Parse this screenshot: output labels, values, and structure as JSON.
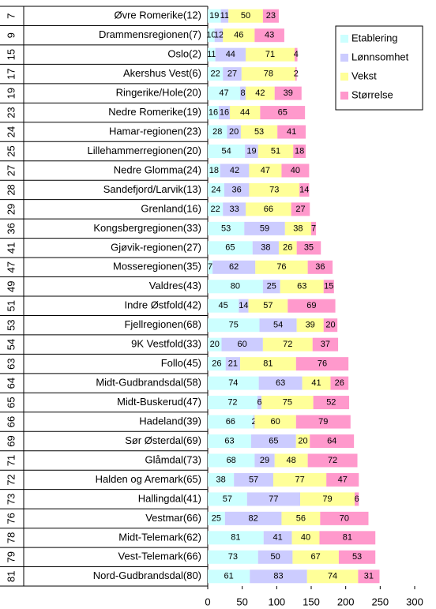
{
  "chart_data": {
    "type": "stacked_bar_horizontal",
    "category_groups": [
      "7",
      "9",
      "15",
      "17",
      "19",
      "23",
      "24",
      "25",
      "27",
      "28",
      "29",
      "36",
      "41",
      "47",
      "49",
      "51",
      "53",
      "54",
      "63",
      "64",
      "65",
      "66",
      "69",
      "71",
      "72",
      "73",
      "76",
      "78",
      "79",
      "81"
    ],
    "categories": [
      "Øvre Romerike(12)",
      "Drammensregionen(7)",
      "Oslo(2)",
      "Akershus Vest(6)",
      "Ringerike/Hole(20)",
      "Nedre Romerike(19)",
      "Hamar-regionen(23)",
      "Lillehammerregionen(20)",
      "Nedre Glomma(24)",
      "Sandefjord/Larvik(13)",
      "Grenland(16)",
      "Kongsbergregionen(33)",
      "Gjøvik-regionen(27)",
      "Mosseregionen(35)",
      "Valdres(43)",
      "Indre Østfold(42)",
      "Fjellregionen(68)",
      "9K Vestfold(33)",
      "Follo(45)",
      "Midt-Gudbrandsdal(58)",
      "Midt-Buskerud(47)",
      "Hadeland(39)",
      "Sør Østerdal(69)",
      "Glåmdal(73)",
      "Halden og Aremark(65)",
      "Hallingdal(41)",
      "Vestmar(66)",
      "Midt-Telemark(62)",
      "Vest-Telemark(66)",
      "Nord-Gudbrandsdal(80)"
    ],
    "series": [
      {
        "name": "Etablering",
        "color": "#ccffff",
        "values": [
          19,
          10,
          11,
          22,
          47,
          16,
          28,
          54,
          18,
          24,
          22,
          53,
          65,
          7,
          80,
          45,
          75,
          20,
          26,
          74,
          72,
          66,
          63,
          68,
          38,
          57,
          25,
          81,
          73,
          61
        ]
      },
      {
        "name": "Lønnsomhet",
        "color": "#ccccff",
        "values": [
          11,
          12,
          44,
          27,
          8,
          16,
          20,
          19,
          42,
          36,
          33,
          59,
          38,
          62,
          25,
          14,
          54,
          60,
          21,
          63,
          6,
          2,
          65,
          29,
          57,
          77,
          82,
          41,
          50,
          83
        ]
      },
      {
        "name": "Vekst",
        "color": "#ffff99",
        "values": [
          50,
          46,
          71,
          78,
          42,
          44,
          53,
          51,
          47,
          73,
          66,
          38,
          26,
          76,
          63,
          57,
          39,
          72,
          81,
          41,
          75,
          60,
          20,
          48,
          77,
          79,
          56,
          40,
          67,
          74
        ]
      },
      {
        "name": "Størrelse",
        "color": "#ff99cc",
        "values": [
          23,
          43,
          4,
          2,
          39,
          65,
          41,
          18,
          40,
          14,
          27,
          7,
          35,
          36,
          15,
          69,
          20,
          37,
          76,
          26,
          52,
          79,
          64,
          72,
          47,
          6,
          70,
          81,
          53,
          31
        ]
      }
    ],
    "xlim": [
      0,
      300
    ],
    "xticks": [
      0,
      50,
      100,
      150,
      200,
      250,
      300
    ],
    "legend": "top-right"
  }
}
